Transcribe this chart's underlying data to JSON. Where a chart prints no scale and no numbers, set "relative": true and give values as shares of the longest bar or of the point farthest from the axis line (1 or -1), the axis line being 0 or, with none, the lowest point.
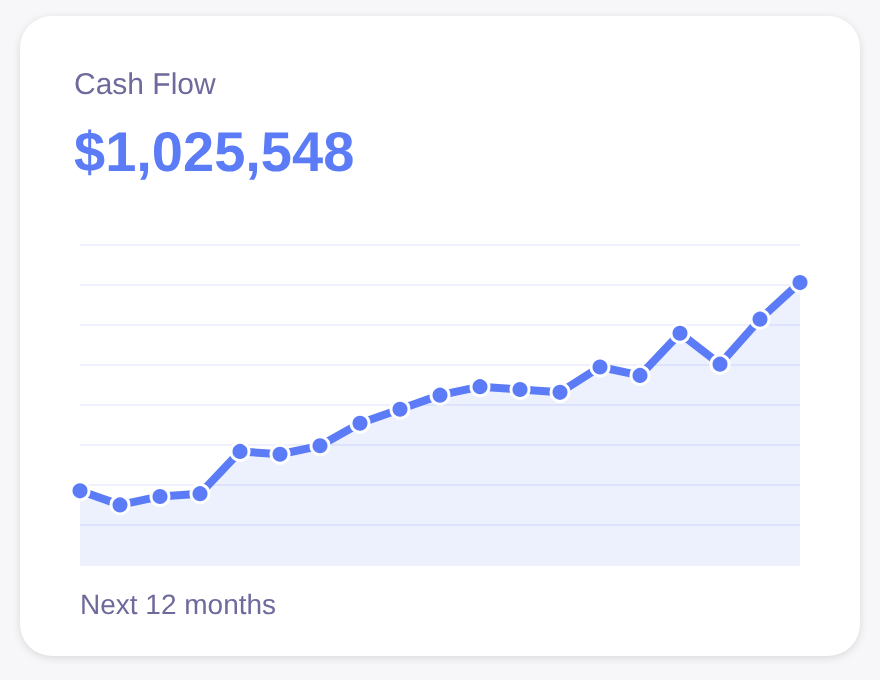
{
  "chart_data": {
    "type": "area",
    "title": "Cash Flow",
    "subtitle": "$1,025,548",
    "annotations": [
      "Next 12 months"
    ],
    "categories": [
      null,
      null,
      null,
      null,
      null,
      null,
      null,
      null,
      null,
      null,
      null,
      null,
      null,
      null,
      null,
      null,
      null,
      null,
      null
    ],
    "relative": true,
    "grid": "y",
    "marker": "circle",
    "line_style": "solid",
    "series": [
      {
        "color": "#5b7cf6",
        "values": [
          0.26,
          0.21,
          0.24,
          0.25,
          0.4,
          0.39,
          0.42,
          0.5,
          0.55,
          0.6,
          0.63,
          0.62,
          0.61,
          0.7,
          0.67,
          0.82,
          0.71,
          0.87,
          1
        ]
      }
    ]
  }
}
